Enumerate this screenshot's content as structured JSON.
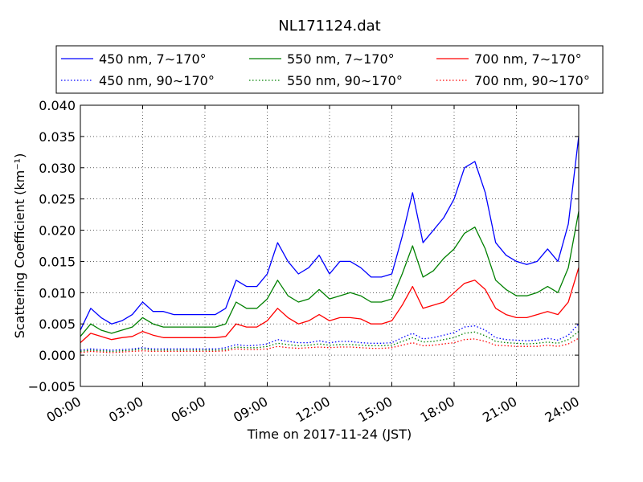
{
  "chart_data": {
    "type": "line",
    "title": "NL171124.dat",
    "xlabel": "Time on 2017-11-24 (JST)",
    "ylabel": "Scattering Coefficient (km⁻¹)",
    "x_ticks": [
      "00:00",
      "03:00",
      "06:00",
      "09:00",
      "12:00",
      "15:00",
      "18:00",
      "21:00",
      "24:00"
    ],
    "y_ticks": [
      "−0.005",
      "0.000",
      "0.005",
      "0.010",
      "0.015",
      "0.020",
      "0.025",
      "0.030",
      "0.035",
      "0.040"
    ],
    "xlim": [
      0,
      24
    ],
    "ylim": [
      -0.005,
      0.04
    ],
    "grid": true,
    "legend_position": "top",
    "x_hours": [
      0,
      0.5,
      1,
      1.5,
      2,
      2.5,
      3,
      3.5,
      4,
      4.5,
      5,
      5.5,
      6,
      6.5,
      7,
      7.5,
      8,
      8.5,
      9,
      9.5,
      10,
      10.5,
      11,
      11.5,
      12,
      12.5,
      13,
      13.5,
      14,
      14.5,
      15,
      15.5,
      16,
      16.5,
      17,
      17.5,
      18,
      18.5,
      19,
      19.5,
      20,
      20.5,
      21,
      21.5,
      22,
      22.5,
      23,
      23.5,
      24
    ],
    "series": [
      {
        "name": "450 nm, 7∼170°",
        "color": "#0000ff",
        "style": "solid",
        "values": [
          0.004,
          0.0075,
          0.006,
          0.005,
          0.0055,
          0.0065,
          0.0085,
          0.007,
          0.007,
          0.0065,
          0.0065,
          0.0065,
          0.0065,
          0.0065,
          0.0075,
          0.012,
          0.011,
          0.011,
          0.013,
          0.018,
          0.015,
          0.013,
          0.014,
          0.016,
          0.013,
          0.015,
          0.015,
          0.014,
          0.0125,
          0.0125,
          0.013,
          0.019,
          0.026,
          0.018,
          0.02,
          0.022,
          0.025,
          0.03,
          0.031,
          0.026,
          0.018,
          0.016,
          0.015,
          0.0145,
          0.015,
          0.017,
          0.015,
          0.021,
          0.035
        ]
      },
      {
        "name": "550 nm, 7∼170°",
        "color": "#008000",
        "style": "solid",
        "values": [
          0.003,
          0.005,
          0.004,
          0.0035,
          0.004,
          0.0045,
          0.006,
          0.005,
          0.0045,
          0.0045,
          0.0045,
          0.0045,
          0.0045,
          0.0045,
          0.005,
          0.0085,
          0.0075,
          0.0075,
          0.009,
          0.012,
          0.0095,
          0.0085,
          0.009,
          0.0105,
          0.009,
          0.0095,
          0.01,
          0.0095,
          0.0085,
          0.0085,
          0.009,
          0.013,
          0.0175,
          0.0125,
          0.0135,
          0.0155,
          0.017,
          0.0195,
          0.0205,
          0.017,
          0.012,
          0.0105,
          0.0095,
          0.0095,
          0.01,
          0.011,
          0.01,
          0.014,
          0.023
        ]
      },
      {
        "name": "700 nm, 7∼170°",
        "color": "#ff0000",
        "style": "solid",
        "values": [
          0.002,
          0.0035,
          0.003,
          0.0025,
          0.0028,
          0.003,
          0.0038,
          0.0032,
          0.0028,
          0.0028,
          0.0028,
          0.0028,
          0.0028,
          0.0028,
          0.003,
          0.005,
          0.0045,
          0.0045,
          0.0055,
          0.0075,
          0.006,
          0.005,
          0.0055,
          0.0065,
          0.0055,
          0.006,
          0.006,
          0.0058,
          0.005,
          0.005,
          0.0055,
          0.008,
          0.011,
          0.0075,
          0.008,
          0.0085,
          0.01,
          0.0115,
          0.012,
          0.0105,
          0.0075,
          0.0065,
          0.006,
          0.006,
          0.0065,
          0.007,
          0.0065,
          0.0085,
          0.014
        ]
      },
      {
        "name": "450 nm, 90∼170°",
        "color": "#0000ff",
        "style": "dotted",
        "values": [
          0.0008,
          0.001,
          0.0009,
          0.0008,
          0.0009,
          0.001,
          0.0012,
          0.001,
          0.001,
          0.001,
          0.001,
          0.001,
          0.001,
          0.001,
          0.0012,
          0.0017,
          0.0015,
          0.0016,
          0.0018,
          0.0025,
          0.0022,
          0.002,
          0.002,
          0.0023,
          0.002,
          0.0022,
          0.0022,
          0.002,
          0.0019,
          0.0019,
          0.002,
          0.0028,
          0.0035,
          0.0026,
          0.0028,
          0.0032,
          0.0036,
          0.0045,
          0.0047,
          0.004,
          0.0028,
          0.0025,
          0.0024,
          0.0023,
          0.0024,
          0.0027,
          0.0024,
          0.0032,
          0.005
        ]
      },
      {
        "name": "550 nm, 90∼170°",
        "color": "#008000",
        "style": "dotted",
        "values": [
          0.0006,
          0.0008,
          0.0007,
          0.0006,
          0.0007,
          0.0008,
          0.001,
          0.0008,
          0.0008,
          0.0008,
          0.0008,
          0.0008,
          0.0008,
          0.0008,
          0.0009,
          0.0013,
          0.0012,
          0.0012,
          0.0014,
          0.0019,
          0.0017,
          0.0015,
          0.0016,
          0.0018,
          0.0016,
          0.0017,
          0.0017,
          0.0016,
          0.0015,
          0.0015,
          0.0016,
          0.0022,
          0.0028,
          0.0021,
          0.0022,
          0.0025,
          0.0028,
          0.0035,
          0.0037,
          0.0031,
          0.0022,
          0.002,
          0.0019,
          0.0018,
          0.0019,
          0.0021,
          0.0019,
          0.0025,
          0.0038
        ]
      },
      {
        "name": "700 nm, 90∼170°",
        "color": "#ff0000",
        "style": "dotted",
        "values": [
          0.0004,
          0.0006,
          0.0005,
          0.0004,
          0.0005,
          0.0006,
          0.0007,
          0.0006,
          0.0006,
          0.0006,
          0.0006,
          0.0006,
          0.0006,
          0.0006,
          0.0007,
          0.001,
          0.0009,
          0.0009,
          0.001,
          0.0014,
          0.0012,
          0.0011,
          0.0012,
          0.0013,
          0.0012,
          0.0013,
          0.0013,
          0.0012,
          0.0011,
          0.0011,
          0.0012,
          0.0016,
          0.002,
          0.0015,
          0.0016,
          0.0018,
          0.002,
          0.0025,
          0.0026,
          0.0022,
          0.0016,
          0.0015,
          0.0014,
          0.0014,
          0.0014,
          0.0016,
          0.0014,
          0.0018,
          0.0027
        ]
      }
    ]
  }
}
